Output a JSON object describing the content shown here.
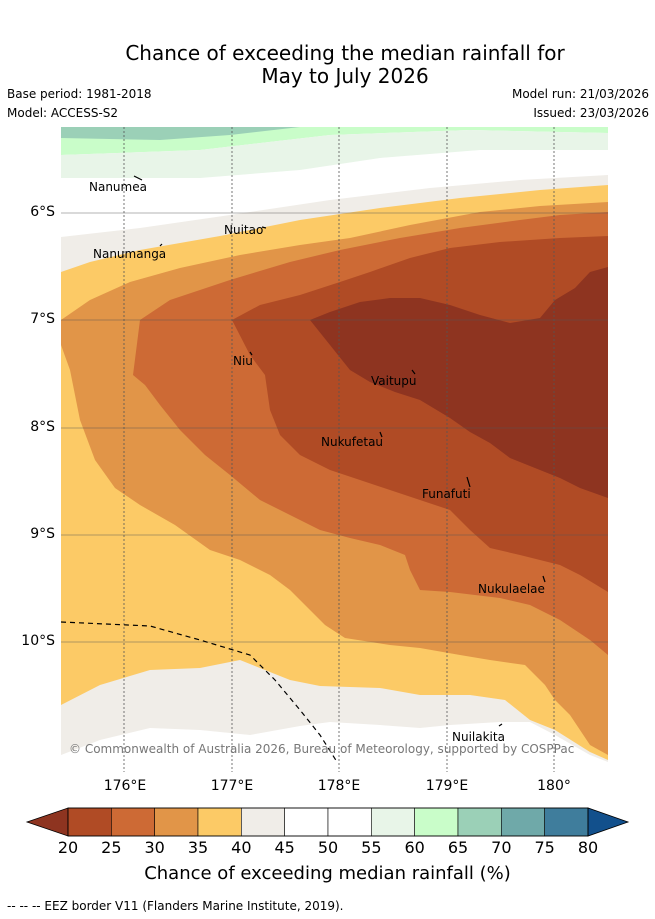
{
  "title": {
    "line1": "Chance of exceeding the median rainfall for",
    "line2": "May to July 2026"
  },
  "meta": {
    "base_period": "Base period: 1981-2018",
    "model": "Model: ACCESS-S2",
    "model_run": "Model run: 21/03/2026",
    "issued": "Issued: 23/03/2026"
  },
  "axes": {
    "lat_labels": [
      "6°S",
      "7°S",
      "8°S",
      "9°S",
      "10°S"
    ],
    "lon_labels": [
      "176°E",
      "177°E",
      "178°E",
      "179°E",
      "180°"
    ]
  },
  "places": [
    "Nanumea",
    "Nuitao",
    "Nanumanga",
    "Niu",
    "Vaitupu",
    "Nukufetau",
    "Funafuti",
    "Nukulaelae",
    "Nuilakita"
  ],
  "credit": "© Commonwealth of Australia 2026, Bureau of Meteorology, supported by COSPPac",
  "colorbar": {
    "ticks": [
      "20",
      "25",
      "30",
      "35",
      "40",
      "45",
      "50",
      "55",
      "60",
      "65",
      "70",
      "75",
      "80"
    ],
    "colors": [
      "#8e3420",
      "#b04b25",
      "#cd6a35",
      "#e19548",
      "#fcca66",
      "#f0ede8",
      "#ffffff",
      "#ffffff",
      "#e8f5e8",
      "#c9fdc9",
      "#9bd0b7",
      "#6fa9a9",
      "#3f7d9c",
      "#12508c"
    ],
    "title": "Chance of exceeding median rainfall (%)"
  },
  "legend": "-- -- -- EEZ border V11 (Flanders Marine Institute, 2019)."
}
